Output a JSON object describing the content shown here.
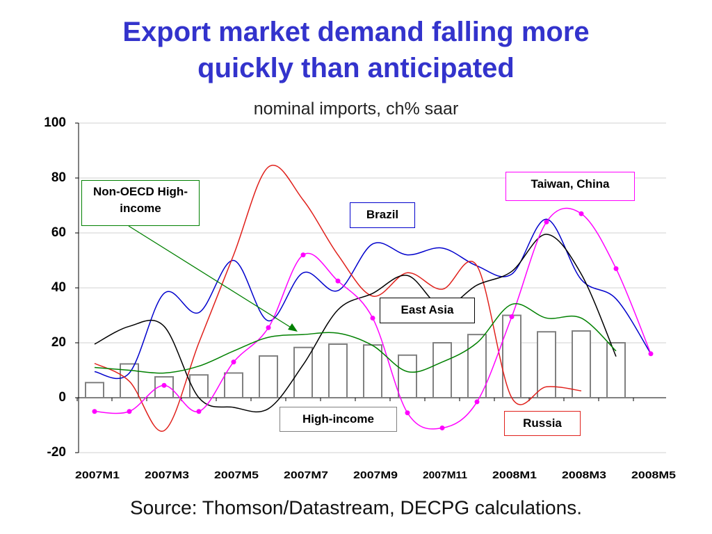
{
  "chart_data": {
    "type": "combo",
    "title": "Export market demand falling more quickly than anticipated",
    "subtitle": "nominal imports,  ch% saar",
    "source": "Source: Thomson/Datastream, DECPG calculations.",
    "categories": [
      "2007M1",
      null,
      "2007M3",
      null,
      "2007M5",
      null,
      "2007M7",
      null,
      "2007M9",
      null,
      "2007M11",
      null,
      "2008M1",
      null,
      "2008M3",
      null,
      "2008M5"
    ],
    "ylim": [
      -20,
      100
    ],
    "yticks": [
      -20,
      0,
      20,
      40,
      60,
      80,
      100
    ],
    "grid": true,
    "series": [
      {
        "name": "High-income",
        "type": "bar",
        "color": "#808080",
        "values": [
          5.5,
          12.3,
          7.6,
          8.3,
          9,
          15.2,
          18.3,
          19.5,
          19.2,
          15.5,
          20,
          23,
          30,
          24,
          24.3,
          20,
          null
        ]
      },
      {
        "name": "Brazil",
        "type": "line",
        "color": "#0000cc",
        "values": [
          9.5,
          9,
          38,
          31,
          50,
          28,
          45.5,
          39,
          56,
          52,
          54.5,
          48,
          45,
          65,
          43,
          36,
          16
        ]
      },
      {
        "name": "Russia",
        "type": "line",
        "color": "#e0201b",
        "values": [
          12.5,
          6,
          -12,
          20,
          52,
          84,
          72,
          52,
          37,
          45.5,
          39.5,
          48,
          0,
          4,
          2.5,
          null,
          null
        ]
      },
      {
        "name": "East Asia",
        "type": "line",
        "color": "#000000",
        "values": [
          19.5,
          26,
          26,
          0,
          -3.5,
          -4,
          12,
          32,
          38,
          44.5,
          33,
          41,
          46,
          59.5,
          45,
          15,
          null
        ]
      },
      {
        "name": "Taiwan, China",
        "type": "line",
        "markers": true,
        "color": "#ff00ff",
        "values": [
          -5,
          -5,
          4.5,
          -5,
          13,
          25.5,
          52,
          42.5,
          29,
          -5.5,
          -11,
          -1.5,
          29.5,
          64,
          67,
          47,
          16
        ]
      },
      {
        "name": "Non-OECD High-income",
        "type": "line",
        "color": "#008000",
        "values": [
          11,
          10,
          9,
          11.5,
          17,
          22,
          23,
          23.5,
          19,
          9.5,
          13,
          20,
          34,
          29,
          29,
          17,
          null
        ]
      }
    ]
  }
}
